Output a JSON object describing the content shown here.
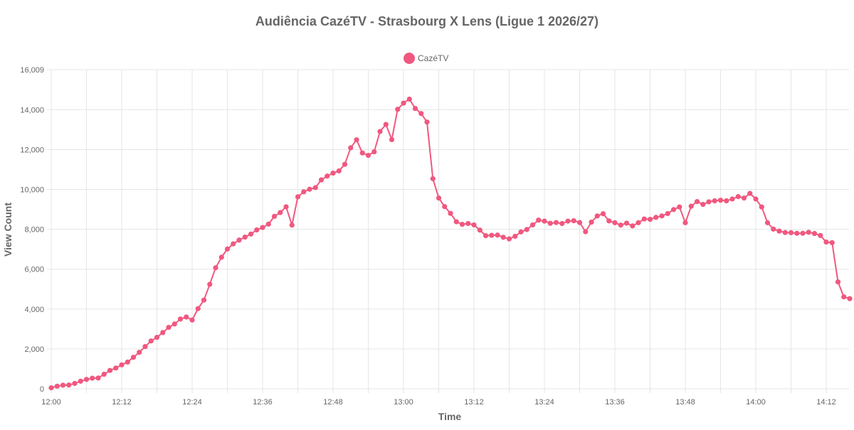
{
  "chart_data": {
    "type": "line",
    "title": "Audiência CazéTV - Strasbourg X Lens (Ligue 1 2026/27)",
    "xlabel": "Time",
    "ylabel": "View Count",
    "ylim": [
      0,
      16009
    ],
    "y_ticks": [
      "0",
      "2,000",
      "4,000",
      "6,000",
      "8,000",
      "10,000",
      "12,000",
      "14,000",
      "16,009"
    ],
    "x_ticks": [
      "12:00",
      "12:12",
      "12:24",
      "12:36",
      "12:48",
      "13:00",
      "13:12",
      "13:24",
      "13:36",
      "13:48",
      "14:00",
      "14:12"
    ],
    "grid": true,
    "legend_position": "top",
    "color": "#f0587f",
    "series": [
      {
        "name": "CazéTV",
        "x_start": "12:00",
        "x_step_minutes": 1,
        "values": [
          50,
          130,
          180,
          190,
          270,
          380,
          470,
          530,
          540,
          730,
          920,
          1040,
          1200,
          1340,
          1580,
          1830,
          2120,
          2400,
          2580,
          2820,
          3080,
          3250,
          3500,
          3600,
          3450,
          4020,
          4450,
          5240,
          6070,
          6600,
          7010,
          7270,
          7460,
          7610,
          7760,
          7970,
          8090,
          8260,
          8650,
          8840,
          9130,
          8210,
          9630,
          9880,
          10010,
          10090,
          10480,
          10670,
          10820,
          10930,
          11260,
          12090,
          12490,
          11830,
          11710,
          11890,
          12910,
          13260,
          12500,
          14020,
          14330,
          14530,
          14060,
          13810,
          13380,
          10540,
          9570,
          9140,
          8800,
          8380,
          8250,
          8290,
          8220,
          7960,
          7680,
          7700,
          7710,
          7600,
          7520,
          7650,
          7870,
          7990,
          8220,
          8460,
          8410,
          8300,
          8340,
          8290,
          8410,
          8430,
          8340,
          7880,
          8360,
          8670,
          8780,
          8420,
          8330,
          8210,
          8310,
          8170,
          8330,
          8520,
          8500,
          8600,
          8670,
          8790,
          8990,
          9120,
          8330,
          9160,
          9390,
          9250,
          9380,
          9430,
          9460,
          9430,
          9520,
          9640,
          9570,
          9800,
          9520,
          9120,
          8330,
          8010,
          7910,
          7840,
          7830,
          7800,
          7800,
          7850,
          7790,
          7690,
          7360,
          7330,
          5360,
          4610,
          4520
        ]
      }
    ]
  }
}
